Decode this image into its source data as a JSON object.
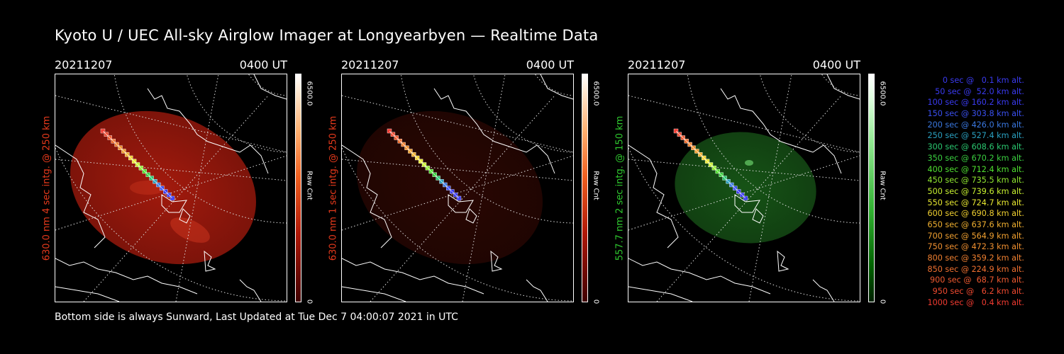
{
  "title": "Kyoto U / UEC All-sky Airglow Imager at Longyearbyen — Realtime Data",
  "panels": [
    {
      "date": "20211207",
      "time": "0400 UT",
      "ylabel": "630.0 nm 4 sec intg. @ 250 km",
      "ylabel_color": "#e83a1c",
      "cbar_max": "6500.0",
      "cbar_unit": "Raw Cnt",
      "cbar_min": "0",
      "colormap": "red",
      "brightness": 0.85
    },
    {
      "date": "20211207",
      "time": "0400 UT",
      "ylabel": "630.0 nm 1 sec intg. @ 250 km",
      "ylabel_color": "#e83a1c",
      "cbar_max": "6500.0",
      "cbar_unit": "Raw Cnt",
      "cbar_min": "0",
      "colormap": "red",
      "brightness": 0.22
    },
    {
      "date": "20211207",
      "time": "0400 UT",
      "ylabel": "557.7 nm 2 sec intg. @ 150 km",
      "ylabel_color": "#2ec82e",
      "cbar_max": "6500.0",
      "cbar_unit": "Raw Cnt",
      "cbar_min": "0",
      "colormap": "green",
      "brightness": 0.55
    }
  ],
  "legend": [
    {
      "text": "   0 sec @   0.1 km alt.",
      "color": "#3a3af0"
    },
    {
      "text": "  50 sec @  52.0 km alt.",
      "color": "#3a3af0"
    },
    {
      "text": " 100 sec @ 160.2 km alt.",
      "color": "#3a3af0"
    },
    {
      "text": " 150 sec @ 303.8 km alt.",
      "color": "#3a50f0"
    },
    {
      "text": " 200 sec @ 426.0 km alt.",
      "color": "#3a78e0"
    },
    {
      "text": " 250 sec @ 527.4 km alt.",
      "color": "#2aa0c0"
    },
    {
      "text": " 300 sec @ 608.6 km alt.",
      "color": "#2ac870"
    },
    {
      "text": " 350 sec @ 670.2 km alt.",
      "color": "#3ad040"
    },
    {
      "text": " 400 sec @ 712.4 km alt.",
      "color": "#50e030"
    },
    {
      "text": " 450 sec @ 735.5 km alt.",
      "color": "#90e830"
    },
    {
      "text": " 500 sec @ 739.6 km alt.",
      "color": "#c8f030"
    },
    {
      "text": " 550 sec @ 724.7 km alt.",
      "color": "#e8e830"
    },
    {
      "text": " 600 sec @ 690.8 km alt.",
      "color": "#f0d030"
    },
    {
      "text": " 650 sec @ 637.6 km alt.",
      "color": "#f0b030"
    },
    {
      "text": " 700 sec @ 564.9 km alt.",
      "color": "#f0a030"
    },
    {
      "text": " 750 sec @ 472.3 km alt.",
      "color": "#f09030"
    },
    {
      "text": " 800 sec @ 359.2 km alt.",
      "color": "#f08030"
    },
    {
      "text": " 850 sec @ 224.9 km alt.",
      "color": "#f07030"
    },
    {
      "text": " 900 sec @  68.7 km alt.",
      "color": "#f05a30"
    },
    {
      "text": " 950 sec @   6.2 km alt.",
      "color": "#f04a30"
    },
    {
      "text": "1000 sec @   0.4 km alt.",
      "color": "#f03a30"
    }
  ],
  "track_colors": [
    "#f03a30",
    "#f04a30",
    "#f05a30",
    "#f07030",
    "#f08030",
    "#f09030",
    "#f0a030",
    "#f0b030",
    "#f0d030",
    "#e8e830",
    "#c8f030",
    "#90e830",
    "#50e030",
    "#3ad040",
    "#2ac870",
    "#2aa0c0",
    "#3a78e0",
    "#3a50f0",
    "#3a3af0",
    "#3a3af0",
    "#3a3af0"
  ],
  "footer": "Bottom side is always Sunward, Last Updated at Tue Dec  7 04:00:07 2021 in UTC"
}
